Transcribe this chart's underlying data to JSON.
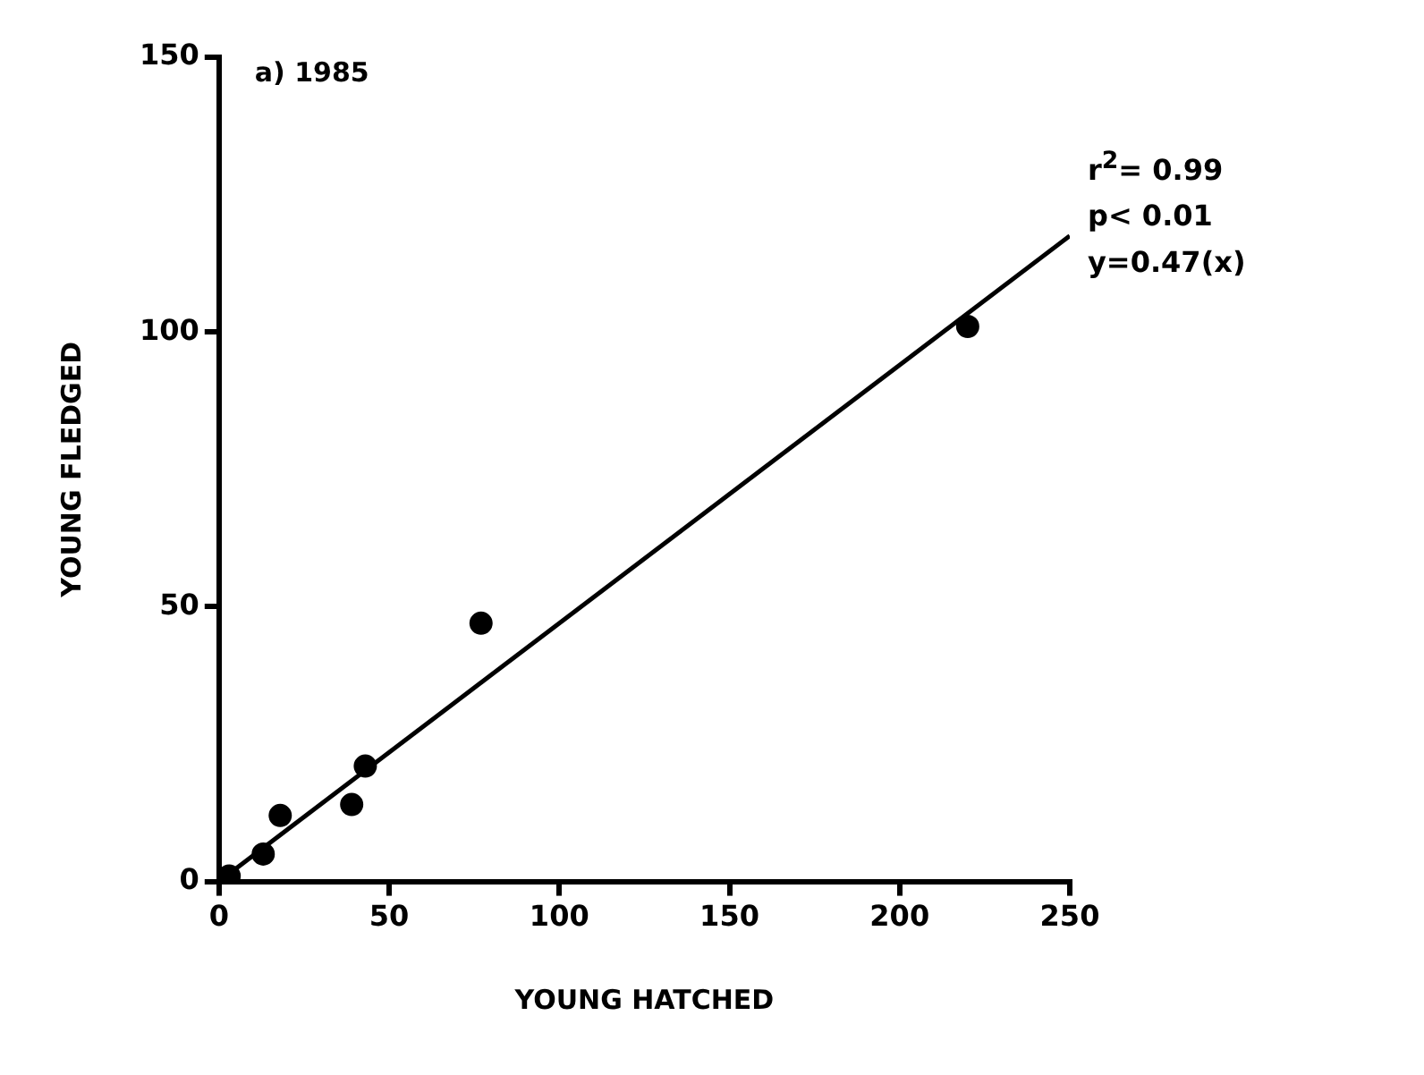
{
  "chart_data": {
    "type": "scatter",
    "title": "a) 1985",
    "xlabel": "YOUNG HATCHED",
    "ylabel": "YOUNG FLEDGED",
    "annotations": [
      "r$^{2}$= 0.99",
      "p< 0.01",
      "y=0.47(x)"
    ],
    "series": [
      {
        "color": "#000000",
        "marker": "circle",
        "x": [
          3,
          13,
          18,
          39,
          43,
          77,
          220
        ],
        "values": [
          1,
          5,
          12,
          14,
          21,
          47,
          101
        ]
      },
      {
        "type": "line",
        "marker": "none",
        "color": "#000000",
        "x": [
          0,
          250
        ],
        "values": [
          0,
          117.5
        ]
      }
    ],
    "xlim": [
      0,
      250
    ],
    "xticks": [
      0,
      50,
      100,
      150,
      200,
      250
    ],
    "ylim": [
      0,
      150
    ],
    "yticks": [
      0,
      50,
      100,
      150
    ],
    "grid": false,
    "legend": false,
    "line_style": "solid"
  }
}
